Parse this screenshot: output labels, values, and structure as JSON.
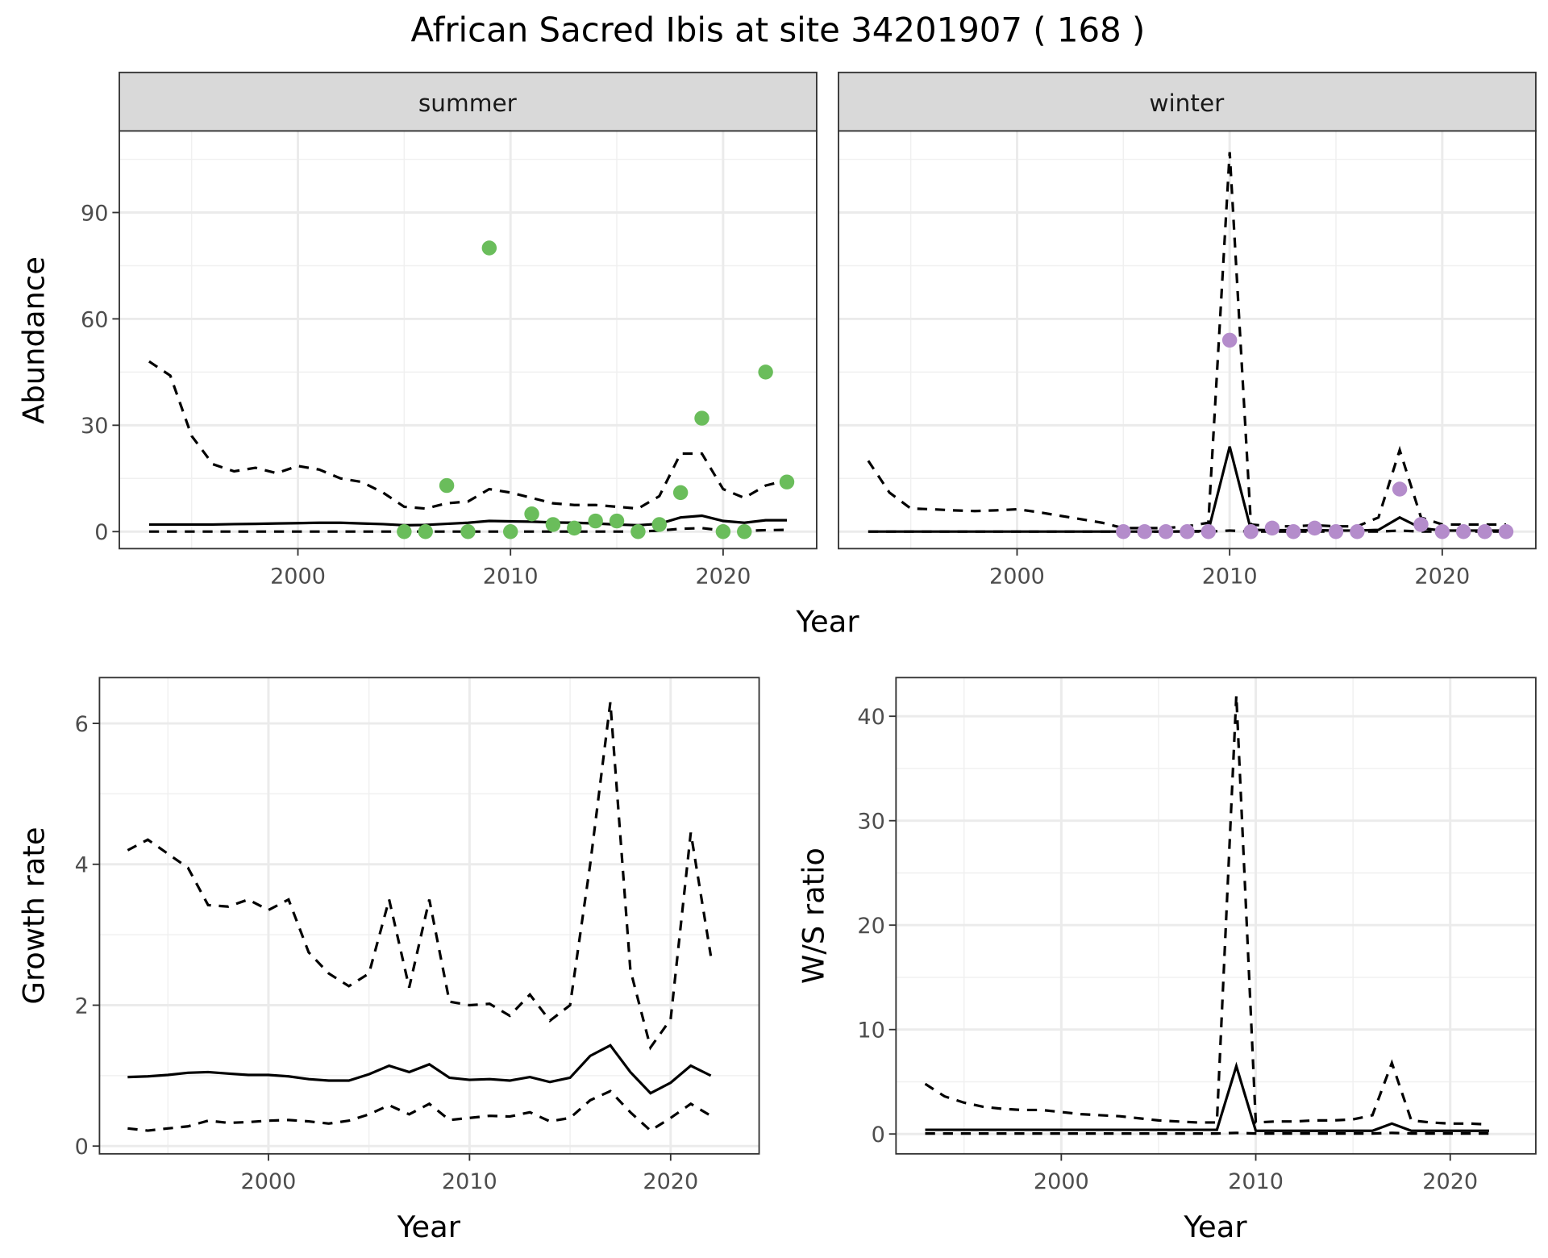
{
  "title": "African Sacred Ibis at site 34201907 ( 168 )",
  "chart_data": [
    {
      "type": "line",
      "panel": "summer",
      "ylabel": "Abundance",
      "xlabel": "Year",
      "xlim": [
        1991.6,
        2024.4
      ],
      "ylim": [
        -4.8,
        113
      ],
      "xticks": [
        2000,
        2010,
        2020
      ],
      "yticks": [
        0,
        30,
        60,
        90
      ],
      "grid": true,
      "point_color": "#6abd5b",
      "points": {
        "x": [
          2005,
          2006,
          2007,
          2008,
          2009,
          2010,
          2011,
          2012,
          2013,
          2014,
          2015,
          2016,
          2017,
          2018,
          2019,
          2020,
          2021,
          2022,
          2023
        ],
        "y": [
          0,
          0,
          13,
          0,
          80,
          0,
          5,
          2,
          1,
          3,
          3,
          0,
          2,
          11,
          32,
          0,
          0,
          45,
          14
        ]
      },
      "x": [
        1993,
        1994,
        1995,
        1996,
        1997,
        1998,
        1999,
        2000,
        2001,
        2002,
        2003,
        2004,
        2005,
        2006,
        2007,
        2008,
        2009,
        2010,
        2011,
        2012,
        2013,
        2014,
        2015,
        2016,
        2017,
        2018,
        2019,
        2020,
        2021,
        2022,
        2023
      ],
      "mean": [
        2,
        2,
        2,
        2,
        2.1,
        2.2,
        2.3,
        2.4,
        2.5,
        2.5,
        2.3,
        2.1,
        1.8,
        1.9,
        2.2,
        2.5,
        3,
        2.9,
        2.8,
        2.6,
        2.5,
        2.3,
        2,
        1.8,
        2.2,
        4,
        4.5,
        3,
        2.5,
        3.2,
        3.2
      ],
      "upper": [
        48,
        44,
        27,
        19,
        17,
        18,
        16.5,
        18.5,
        17.5,
        15,
        14,
        11,
        7,
        6.5,
        8,
        8.5,
        12,
        11,
        9.5,
        8,
        7.5,
        7.5,
        7,
        6.5,
        10,
        22,
        22,
        12,
        9.5,
        13,
        14.5
      ],
      "lower": [
        0,
        0,
        0,
        0,
        0,
        0,
        0,
        0,
        0,
        0,
        0,
        0,
        0,
        0,
        0,
        0,
        0,
        0,
        0,
        0,
        0,
        0,
        0,
        0,
        0.3,
        0.8,
        1,
        0.3,
        0.2,
        0.4,
        0.5
      ]
    },
    {
      "type": "line",
      "panel": "winter",
      "xlabel": "Year",
      "xlim": [
        1991.6,
        2024.4
      ],
      "ylim": [
        -4.8,
        113
      ],
      "xticks": [
        2000,
        2010,
        2020
      ],
      "yticks": [
        0,
        30,
        60,
        90
      ],
      "grid": true,
      "point_color": "#b48ccb",
      "points": {
        "x": [
          2005,
          2006,
          2007,
          2008,
          2009,
          2010,
          2011,
          2012,
          2013,
          2014,
          2015,
          2016,
          2018,
          2019,
          2020,
          2021,
          2022,
          2023
        ],
        "y": [
          0,
          0,
          0,
          0,
          0,
          54,
          0,
          1,
          0,
          1,
          0,
          0,
          12,
          2,
          0,
          0,
          0,
          0
        ]
      },
      "x": [
        1993,
        1994,
        1995,
        1996,
        1997,
        1998,
        1999,
        2000,
        2001,
        2002,
        2003,
        2004,
        2005,
        2006,
        2007,
        2008,
        2009,
        2010,
        2011,
        2012,
        2013,
        2014,
        2015,
        2016,
        2017,
        2018,
        2019,
        2020,
        2021,
        2022,
        2023
      ],
      "mean": [
        0,
        0,
        0,
        0,
        0,
        0,
        0,
        0,
        0,
        0,
        0,
        0,
        0,
        0,
        0,
        0.1,
        0.2,
        24,
        0.5,
        0.4,
        0.4,
        0.4,
        0.3,
        0.3,
        0.5,
        4,
        1,
        0.3,
        0.3,
        0.3,
        0.3
      ],
      "upper": [
        20,
        11,
        6.5,
        6.3,
        6,
        5.8,
        6,
        6.3,
        5.5,
        4.5,
        3.5,
        2.5,
        1,
        1,
        1,
        1.5,
        2.5,
        107,
        2,
        1.5,
        1.5,
        1.8,
        1.5,
        1.5,
        4,
        23,
        4,
        2,
        2,
        2,
        2
      ],
      "lower": [
        0,
        0,
        0,
        0,
        0,
        0,
        0,
        0,
        0,
        0,
        0,
        0,
        0,
        0,
        0,
        0,
        0,
        0.3,
        0,
        0,
        0,
        0,
        0,
        0,
        0,
        0.3,
        0,
        0,
        0,
        0,
        0
      ]
    },
    {
      "type": "line",
      "ylabel": "Growth rate",
      "xlabel": "Year",
      "xlim": [
        1991.6,
        2024.4
      ],
      "ylim": [
        -0.11,
        6.65
      ],
      "xticks": [
        2000,
        2010,
        2020
      ],
      "yticks": [
        0,
        2,
        4,
        6
      ],
      "grid": true,
      "x": [
        1993,
        1994,
        1995,
        1996,
        1997,
        1998,
        1999,
        2000,
        2001,
        2002,
        2003,
        2004,
        2005,
        2006,
        2007,
        2008,
        2009,
        2010,
        2011,
        2012,
        2013,
        2014,
        2015,
        2016,
        2017,
        2018,
        2019,
        2020,
        2021,
        2022
      ],
      "mean": [
        0.98,
        0.99,
        1.01,
        1.04,
        1.05,
        1.03,
        1.01,
        1.01,
        0.99,
        0.95,
        0.93,
        0.93,
        1.02,
        1.14,
        1.05,
        1.16,
        0.97,
        0.94,
        0.95,
        0.93,
        0.98,
        0.91,
        0.97,
        1.28,
        1.43,
        1.05,
        0.75,
        0.9,
        1.14,
        1.0
      ],
      "upper": [
        4.2,
        4.35,
        4.15,
        3.95,
        3.42,
        3.4,
        3.5,
        3.35,
        3.5,
        2.75,
        2.45,
        2.27,
        2.45,
        3.5,
        2.25,
        3.5,
        2.05,
        2.0,
        2.02,
        1.85,
        2.15,
        1.78,
        2.0,
        4.0,
        6.3,
        2.5,
        1.4,
        1.8,
        4.45,
        2.7
      ],
      "lower": [
        0.25,
        0.22,
        0.25,
        0.28,
        0.36,
        0.33,
        0.34,
        0.36,
        0.37,
        0.35,
        0.32,
        0.36,
        0.45,
        0.58,
        0.45,
        0.6,
        0.37,
        0.4,
        0.43,
        0.42,
        0.48,
        0.35,
        0.4,
        0.65,
        0.78,
        0.48,
        0.22,
        0.4,
        0.6,
        0.43
      ]
    },
    {
      "type": "line",
      "ylabel": "W/S ratio",
      "xlabel": "Year",
      "xlim": [
        1991.5,
        2024.4
      ],
      "ylim": [
        -1.9,
        43.7
      ],
      "xticks": [
        2000,
        2010,
        2020
      ],
      "yticks": [
        0,
        10,
        20,
        30,
        40
      ],
      "grid": true,
      "x": [
        1993,
        1994,
        1995,
        1996,
        1997,
        1998,
        1999,
        2000,
        2001,
        2002,
        2003,
        2004,
        2005,
        2006,
        2007,
        2008,
        2009,
        2010,
        2011,
        2012,
        2013,
        2014,
        2015,
        2016,
        2017,
        2018,
        2019,
        2020,
        2021,
        2022
      ],
      "mean": [
        0.4,
        0.4,
        0.4,
        0.4,
        0.4,
        0.4,
        0.4,
        0.4,
        0.4,
        0.4,
        0.4,
        0.4,
        0.4,
        0.4,
        0.4,
        0.4,
        6.5,
        0.3,
        0.3,
        0.3,
        0.3,
        0.3,
        0.3,
        0.3,
        1.0,
        0.3,
        0.3,
        0.3,
        0.3,
        0.3
      ],
      "upper": [
        4.8,
        3.6,
        3,
        2.6,
        2.4,
        2.3,
        2.3,
        2.1,
        1.9,
        1.8,
        1.7,
        1.5,
        1.3,
        1.2,
        1.1,
        1.1,
        42,
        1.1,
        1.2,
        1.2,
        1.3,
        1.3,
        1.4,
        1.8,
        6.8,
        1.3,
        1.1,
        1.0,
        1.0,
        0.9
      ],
      "lower": [
        0.05,
        0.05,
        0.05,
        0.05,
        0.05,
        0.05,
        0.05,
        0.05,
        0.05,
        0.05,
        0.05,
        0.05,
        0.05,
        0.05,
        0.05,
        0.05,
        0.1,
        0.05,
        0.05,
        0.05,
        0.05,
        0.05,
        0.05,
        0.05,
        0.1,
        0.05,
        0.05,
        0.05,
        0.05,
        0.05
      ]
    }
  ]
}
